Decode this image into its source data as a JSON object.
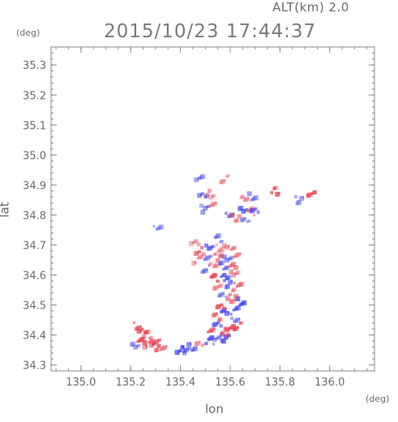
{
  "header": {
    "altitude_label": "ALT(km)  2.0",
    "timestamp": "2015/10/23 17:44:37"
  },
  "chart_data": {
    "type": "scatter",
    "title": "2015/10/23 17:44:37",
    "xlabel": "lon",
    "ylabel": "lat",
    "x_unit": "(deg)",
    "y_unit": "(deg)",
    "xlim": [
      134.88,
      136.18
    ],
    "ylim": [
      34.28,
      35.36
    ],
    "xticks": [
      "135.0",
      "135.2",
      "135.4",
      "135.6",
      "135.8",
      "136.0"
    ],
    "xtick_values": [
      135.0,
      135.2,
      135.4,
      135.6,
      135.8,
      136.0
    ],
    "yticks": [
      "34.3",
      "34.4",
      "34.5",
      "34.6",
      "34.7",
      "34.8",
      "34.9",
      "35.0",
      "35.1",
      "35.2",
      "35.3"
    ],
    "ytick_values": [
      34.3,
      34.4,
      34.5,
      34.6,
      34.7,
      34.8,
      34.9,
      35.0,
      35.1,
      35.2,
      35.3
    ],
    "grid": false,
    "colors": {
      "positive": "#e8404f",
      "negative": "#3a3aef",
      "axis": "#888888"
    },
    "echo_cells": [
      {
        "lon": 135.23,
        "lat": 34.43,
        "v": 0.6
      },
      {
        "lon": 135.25,
        "lat": 34.41,
        "v": 0.8
      },
      {
        "lon": 135.27,
        "lat": 34.4,
        "v": 0.5
      },
      {
        "lon": 135.24,
        "lat": 34.38,
        "v": 0.9
      },
      {
        "lon": 135.27,
        "lat": 34.37,
        "v": 0.7
      },
      {
        "lon": 135.3,
        "lat": 34.38,
        "v": 0.6
      },
      {
        "lon": 135.3,
        "lat": 34.36,
        "v": 0.9
      },
      {
        "lon": 135.22,
        "lat": 34.37,
        "v": -0.3
      },
      {
        "lon": 135.33,
        "lat": 34.35,
        "v": 0.4
      },
      {
        "lon": 135.4,
        "lat": 34.35,
        "v": -0.8
      },
      {
        "lon": 135.42,
        "lat": 34.35,
        "v": -0.6
      },
      {
        "lon": 135.45,
        "lat": 34.36,
        "v": -0.5
      },
      {
        "lon": 135.48,
        "lat": 34.37,
        "v": 0.3
      },
      {
        "lon": 135.52,
        "lat": 34.38,
        "v": -0.7
      },
      {
        "lon": 135.55,
        "lat": 34.39,
        "v": -0.4
      },
      {
        "lon": 135.58,
        "lat": 34.39,
        "v": -0.8
      },
      {
        "lon": 135.52,
        "lat": 34.42,
        "v": 0.7
      },
      {
        "lon": 135.55,
        "lat": 34.43,
        "v": -0.6
      },
      {
        "lon": 135.58,
        "lat": 34.41,
        "v": 0.5
      },
      {
        "lon": 135.6,
        "lat": 34.42,
        "v": 0.8
      },
      {
        "lon": 135.63,
        "lat": 34.43,
        "v": 0.9
      },
      {
        "lon": 135.62,
        "lat": 34.45,
        "v": -0.3
      },
      {
        "lon": 135.55,
        "lat": 34.46,
        "v": 0.6
      },
      {
        "lon": 135.58,
        "lat": 34.48,
        "v": -0.6
      },
      {
        "lon": 135.62,
        "lat": 34.48,
        "v": -0.7
      },
      {
        "lon": 135.56,
        "lat": 34.5,
        "v": 0.8
      },
      {
        "lon": 135.6,
        "lat": 34.51,
        "v": 0.4
      },
      {
        "lon": 135.64,
        "lat": 34.51,
        "v": -0.8
      },
      {
        "lon": 135.57,
        "lat": 34.53,
        "v": -0.3
      },
      {
        "lon": 135.61,
        "lat": 34.54,
        "v": 0.5
      },
      {
        "lon": 135.55,
        "lat": 34.56,
        "v": 0.3
      },
      {
        "lon": 135.59,
        "lat": 34.57,
        "v": -0.5
      },
      {
        "lon": 135.63,
        "lat": 34.57,
        "v": 0.6
      },
      {
        "lon": 135.54,
        "lat": 34.59,
        "v": 0.9
      },
      {
        "lon": 135.58,
        "lat": 34.6,
        "v": -0.7
      },
      {
        "lon": 135.62,
        "lat": 34.6,
        "v": 0.4
      },
      {
        "lon": 135.5,
        "lat": 34.62,
        "v": -0.4
      },
      {
        "lon": 135.53,
        "lat": 34.63,
        "v": 0.3
      },
      {
        "lon": 135.57,
        "lat": 34.63,
        "v": -0.6
      },
      {
        "lon": 135.61,
        "lat": 34.63,
        "v": 0.5
      },
      {
        "lon": 135.47,
        "lat": 34.65,
        "v": 0.4
      },
      {
        "lon": 135.51,
        "lat": 34.66,
        "v": -0.3
      },
      {
        "lon": 135.55,
        "lat": 34.66,
        "v": 0.6
      },
      {
        "lon": 135.59,
        "lat": 34.66,
        "v": -0.4
      },
      {
        "lon": 135.63,
        "lat": 34.66,
        "v": 0.3
      },
      {
        "lon": 135.48,
        "lat": 34.68,
        "v": 0.7
      },
      {
        "lon": 135.52,
        "lat": 34.69,
        "v": -0.6
      },
      {
        "lon": 135.56,
        "lat": 34.69,
        "v": 0.3
      },
      {
        "lon": 135.6,
        "lat": 34.69,
        "v": 0.5
      },
      {
        "lon": 135.55,
        "lat": 34.72,
        "v": -0.4
      },
      {
        "lon": 135.46,
        "lat": 34.71,
        "v": 0.3
      },
      {
        "lon": 135.5,
        "lat": 34.82,
        "v": -0.4
      },
      {
        "lon": 135.53,
        "lat": 34.84,
        "v": 0.3
      },
      {
        "lon": 135.49,
        "lat": 34.86,
        "v": -0.5
      },
      {
        "lon": 135.52,
        "lat": 34.87,
        "v": 0.4
      },
      {
        "lon": 135.48,
        "lat": 34.92,
        "v": -0.3
      },
      {
        "lon": 135.58,
        "lat": 34.92,
        "v": 0.3
      },
      {
        "lon": 135.6,
        "lat": 34.8,
        "v": -0.4
      },
      {
        "lon": 135.62,
        "lat": 34.79,
        "v": 0.5
      },
      {
        "lon": 135.65,
        "lat": 34.82,
        "v": -0.6
      },
      {
        "lon": 135.68,
        "lat": 34.81,
        "v": 0.4
      },
      {
        "lon": 135.7,
        "lat": 34.82,
        "v": -0.5
      },
      {
        "lon": 135.66,
        "lat": 34.85,
        "v": 0.3
      },
      {
        "lon": 135.69,
        "lat": 34.86,
        "v": -0.4
      },
      {
        "lon": 135.66,
        "lat": 34.78,
        "v": -0.3
      },
      {
        "lon": 135.78,
        "lat": 34.88,
        "v": 0.8
      },
      {
        "lon": 135.93,
        "lat": 34.87,
        "v": 0.9
      },
      {
        "lon": 135.88,
        "lat": 34.85,
        "v": -0.3
      },
      {
        "lon": 135.31,
        "lat": 34.76,
        "v": -0.3
      }
    ]
  }
}
